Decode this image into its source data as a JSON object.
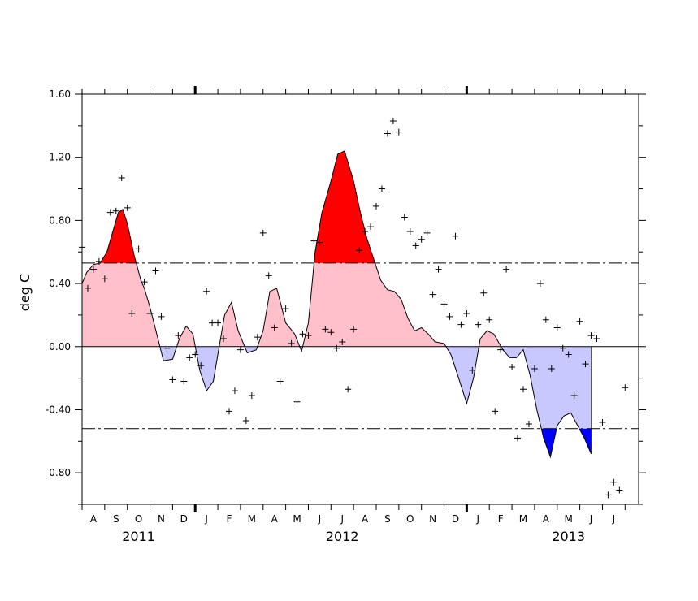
{
  "chart_data": {
    "type": "area",
    "ylabel": "deg C",
    "ylim": [
      -1.0,
      1.6
    ],
    "yticks": [
      "1.60",
      "1.20",
      "0.80",
      "0.40",
      "0.00",
      "-0.40",
      "-0.80"
    ],
    "threshold_upper": 0.53,
    "threshold_lower": -0.52,
    "x_unit": "month index (0 = start of Jul 2011)",
    "xlim": [
      0,
      24.6
    ],
    "month_labels": [
      "A",
      "S",
      "O",
      "N",
      "D",
      "J",
      "F",
      "M",
      "A",
      "M",
      "J",
      "J",
      "A",
      "S",
      "O",
      "N",
      "D",
      "J",
      "F",
      "M",
      "A",
      "M",
      "J",
      "J"
    ],
    "year_labels": [
      {
        "text": "2011",
        "x": 2.5
      },
      {
        "text": "2012",
        "x": 11.5
      },
      {
        "text": "2013",
        "x": 21.5
      }
    ],
    "year_boundaries": [
      5,
      17
    ],
    "colors": {
      "strong_positive": "#ff0000",
      "positive": "#ffc0cb",
      "negative": "#c8c8ff",
      "strong_negative": "#0000ff",
      "line": "#000000"
    },
    "smoothed_series": {
      "name": "",
      "x": [
        0,
        0.2,
        0.5,
        0.8,
        1.1,
        1.4,
        1.6,
        1.8,
        2.0,
        2.3,
        2.6,
        2.75,
        3.0,
        3.3,
        3.6,
        4.0,
        4.3,
        4.6,
        4.9,
        5.2,
        5.5,
        5.8,
        6.0,
        6.3,
        6.6,
        6.9,
        7.3,
        7.7,
        8.0,
        8.3,
        8.6,
        9.0,
        9.4,
        9.7,
        10.0,
        10.3,
        10.6,
        11.0,
        11.3,
        11.6,
        12.0,
        12.3,
        12.6,
        12.9,
        13.2,
        13.5,
        13.8,
        14.1,
        14.4,
        14.7,
        15.0,
        15.3,
        15.6,
        16.0,
        16.3,
        16.6,
        17.0,
        17.3,
        17.6,
        17.9,
        18.2,
        18.6,
        18.9,
        19.2,
        19.5,
        19.8,
        20.1,
        20.4,
        20.7,
        21.0,
        21.3,
        21.6,
        21.9,
        22.2,
        22.5,
        22.9,
        23.2,
        23.6,
        24.0
      ],
      "values": [
        0.4,
        0.47,
        0.52,
        0.53,
        0.6,
        0.75,
        0.85,
        0.87,
        0.78,
        0.58,
        0.42,
        0.37,
        0.25,
        0.08,
        -0.09,
        -0.08,
        0.05,
        0.13,
        0.08,
        -0.15,
        -0.28,
        -0.22,
        -0.05,
        0.2,
        0.28,
        0.1,
        -0.04,
        -0.02,
        0.1,
        0.35,
        0.37,
        0.15,
        0.08,
        -0.03,
        0.15,
        0.6,
        0.85,
        1.05,
        1.22,
        1.24,
        1.05,
        0.85,
        0.68,
        0.55,
        0.42,
        0.36,
        0.35,
        0.3,
        0.18,
        0.1,
        0.12,
        0.08,
        0.03,
        0.02,
        -0.05,
        -0.18,
        -0.36,
        -0.2,
        0.05,
        0.1,
        0.08,
        -0.02,
        -0.07,
        -0.07,
        -0.02,
        -0.18,
        -0.4,
        -0.58,
        -0.7,
        -0.5,
        -0.44,
        -0.42,
        -0.5,
        -0.58,
        -0.68,
        null,
        null,
        null,
        null
      ]
    },
    "monthly_points": {
      "name": "",
      "x": [
        0,
        0.25,
        0.5,
        0.75,
        1.0,
        1.25,
        1.5,
        1.75,
        2.0,
        2.2,
        2.5,
        2.75,
        3.0,
        3.25,
        3.5,
        3.75,
        4.0,
        4.25,
        4.5,
        4.75,
        5.0,
        5.25,
        5.5,
        5.75,
        6.0,
        6.25,
        6.5,
        6.75,
        7.0,
        7.25,
        7.5,
        7.75,
        8.0,
        8.25,
        8.5,
        8.75,
        9.0,
        9.25,
        9.5,
        9.75,
        10.0,
        10.25,
        10.5,
        10.75,
        11.0,
        11.25,
        11.5,
        11.75,
        12.0,
        12.25,
        12.5,
        12.75,
        13.0,
        13.25,
        13.5,
        13.75,
        14.0,
        14.25,
        14.5,
        14.75,
        15.0,
        15.25,
        15.5,
        15.75,
        16.0,
        16.25,
        16.5,
        16.75,
        17.0,
        17.25,
        17.5,
        17.75,
        18.0,
        18.25,
        18.5,
        18.75,
        19.0,
        19.25,
        19.5,
        19.75,
        20.0,
        20.25,
        20.5,
        20.75,
        21.0,
        21.25,
        21.5,
        21.75,
        22.0,
        22.25,
        22.5,
        22.75,
        23.0,
        23.25,
        23.5,
        23.75,
        24.0
      ],
      "values": [
        0.63,
        0.37,
        0.49,
        0.54,
        0.43,
        0.85,
        0.86,
        1.07,
        0.88,
        0.21,
        0.62,
        0.41,
        0.21,
        0.48,
        0.19,
        -0.01,
        -0.21,
        0.07,
        -0.22,
        -0.07,
        -0.05,
        -0.12,
        0.35,
        0.15,
        0.15,
        0.05,
        -0.41,
        -0.28,
        -0.02,
        -0.47,
        -0.31,
        0.06,
        0.72,
        0.45,
        0.12,
        -0.22,
        0.24,
        0.02,
        -0.35,
        0.08,
        0.07,
        0.67,
        0.66,
        0.11,
        0.09,
        -0.01,
        0.03,
        -0.27,
        0.11,
        0.61,
        0.73,
        0.76,
        0.89,
        1.0,
        1.35,
        1.43,
        1.36,
        0.82,
        0.73,
        0.64,
        0.68,
        0.72,
        0.33,
        0.49,
        0.27,
        0.19,
        0.7,
        0.14,
        0.21,
        -0.15,
        0.14,
        0.34,
        0.17,
        -0.41,
        -0.02,
        0.49,
        -0.13,
        -0.58,
        -0.27,
        -0.49,
        -0.14,
        0.4,
        0.17,
        -0.14,
        0.12,
        -0.01,
        -0.05,
        -0.31,
        0.16,
        -0.11,
        0.07,
        0.05,
        -0.48,
        -0.94,
        -0.86,
        -0.91,
        -0.26
      ]
    }
  }
}
